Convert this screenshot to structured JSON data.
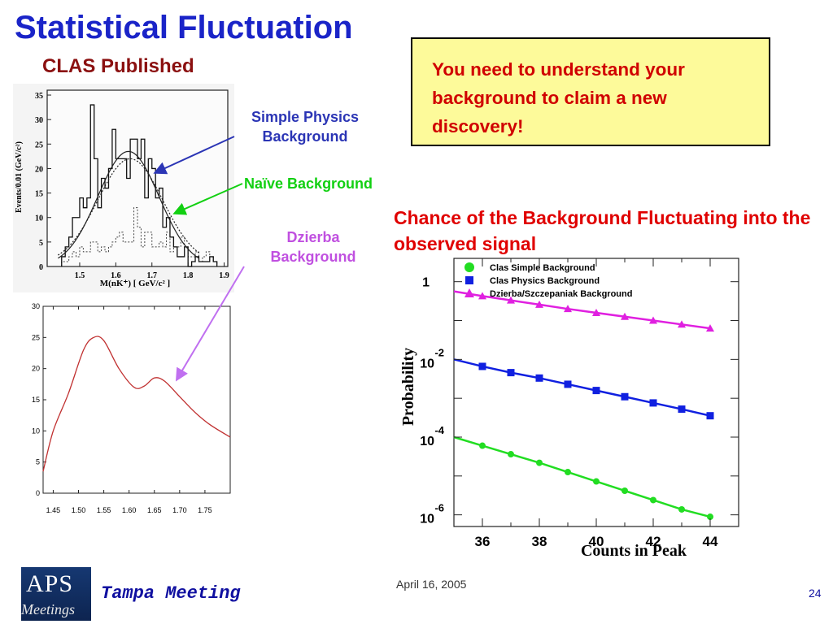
{
  "slide": {
    "title": "Statistical Fluctuation",
    "subtitle": "CLAS Published",
    "note": "You need to understand your background to claim a new discovery!",
    "labels": {
      "simple": "Simple Physics Background",
      "naive": "Naïve Background",
      "dzierba": "Dzierba Background"
    },
    "chance": "Chance of the Background Fluctuating into the observed signal",
    "footer": {
      "meeting": "Tampa Meeting",
      "date": "April 16, 2005",
      "page": "24",
      "logo_top": "APS",
      "logo_bottom": "Meetings"
    }
  },
  "chart_data": [
    {
      "type": "bar",
      "xlabel": "M(nK⁺) [ GeV/c² ]",
      "ylabel": "Events/0.01 (GeV/c²)",
      "xticks": [
        "1.5",
        "1.6",
        "1.7",
        "1.8",
        "1.9"
      ],
      "yticks": [
        "0",
        "5",
        "10",
        "15",
        "20",
        "25",
        "30",
        "35"
      ],
      "xlim": [
        1.41,
        1.91
      ],
      "ylim": [
        0,
        36
      ],
      "categories": [
        1.455,
        1.465,
        1.475,
        1.485,
        1.495,
        1.505,
        1.515,
        1.525,
        1.535,
        1.545,
        1.555,
        1.565,
        1.575,
        1.585,
        1.595,
        1.605,
        1.615,
        1.625,
        1.635,
        1.645,
        1.655,
        1.665,
        1.675,
        1.685,
        1.695,
        1.705,
        1.715,
        1.725,
        1.735,
        1.745,
        1.755,
        1.765,
        1.775,
        1.785,
        1.795,
        1.805,
        1.815,
        1.825,
        1.835,
        1.845,
        1.855,
        1.865,
        1.875
      ],
      "series": [
        {
          "values": [
            2,
            4,
            6,
            10,
            10,
            14,
            12,
            14,
            33,
            22,
            12,
            18,
            16,
            20,
            28,
            22,
            22,
            22,
            18,
            26,
            26,
            22,
            26,
            14,
            22,
            20,
            14,
            16,
            8,
            10,
            6,
            4,
            2,
            2,
            4,
            0,
            1,
            2,
            1,
            1,
            1,
            2,
            1
          ]
        },
        {
          "values": [
            1,
            1,
            2,
            3,
            2,
            4,
            3,
            3,
            5,
            5,
            3,
            4,
            3,
            4,
            5,
            6,
            7,
            5,
            5,
            5,
            12,
            8,
            4,
            7,
            7,
            4,
            4,
            5,
            4,
            7,
            3,
            4,
            4,
            6,
            4,
            2,
            2,
            3,
            1,
            2,
            3,
            2,
            1
          ]
        }
      ]
    },
    {
      "type": "line",
      "xticks": [
        "1.45",
        "1.50",
        "1.55",
        "1.60",
        "1.65",
        "1.70",
        "1.75"
      ],
      "yticks": [
        "0",
        "5",
        "10",
        "15",
        "20",
        "25",
        "30"
      ],
      "xlim": [
        1.43,
        1.8
      ],
      "ylim": [
        0,
        30
      ],
      "series": [
        {
          "x": [
            1.43,
            1.45,
            1.48,
            1.51,
            1.53,
            1.55,
            1.58,
            1.61,
            1.63,
            1.65,
            1.67,
            1.7,
            1.73,
            1.76,
            1.8
          ],
          "y": [
            3.5,
            10,
            16,
            23,
            25,
            24.5,
            20,
            17,
            17.2,
            18.5,
            18,
            15.5,
            13,
            11,
            9
          ]
        }
      ]
    },
    {
      "type": "line",
      "xlabel": "Counts in Peak",
      "ylabel": "Probability",
      "xticks": [
        "36",
        "38",
        "40",
        "42",
        "44"
      ],
      "yticks": [
        "1",
        "10-2",
        "10-4",
        "10-6"
      ],
      "xlim": [
        35,
        45
      ],
      "ylim": [
        -6.3,
        0.6
      ],
      "log_y": true,
      "x": [
        35,
        36,
        37,
        38,
        39,
        40,
        41,
        42,
        43,
        44
      ],
      "series": [
        {
          "name": "Clas Simple Background",
          "color": "#22dd22",
          "marker": "circle",
          "values": [
            -4.0,
            -4.22,
            -4.44,
            -4.66,
            -4.9,
            -5.14,
            -5.38,
            -5.62,
            -5.86,
            -6.05
          ]
        },
        {
          "name": "Clas Physics Background",
          "color": "#1020e0",
          "marker": "square",
          "values": [
            -2.0,
            -2.18,
            -2.34,
            -2.48,
            -2.64,
            -2.8,
            -2.96,
            -3.12,
            -3.28,
            -3.45
          ]
        },
        {
          "name": "Dzierba/Szczepaniak Background",
          "color": "#e020e0",
          "marker": "triangle",
          "values": [
            -0.25,
            -0.37,
            -0.48,
            -0.59,
            -0.7,
            -0.8,
            -0.9,
            -1.0,
            -1.1,
            -1.2
          ]
        }
      ]
    }
  ]
}
